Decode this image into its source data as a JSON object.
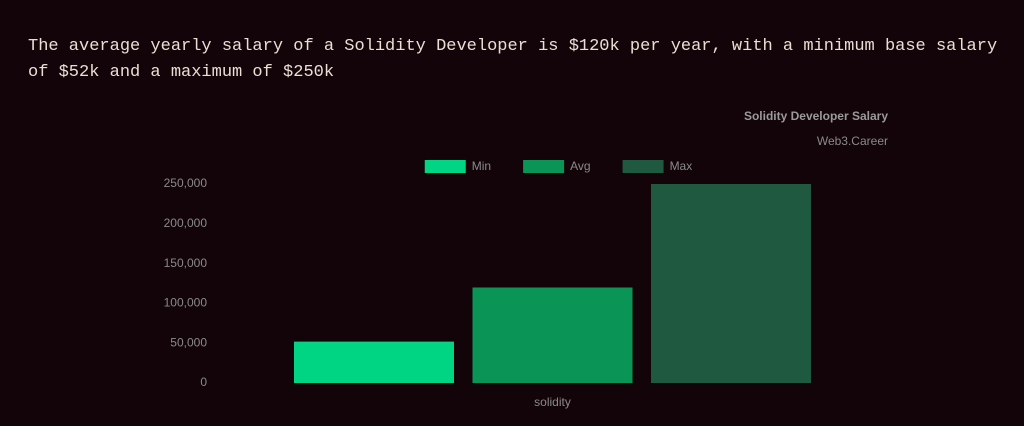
{
  "intro": "The average yearly salary of a Solidity Developer is $120k per year, with a minimum base salary of $52k and a maximum of $250k",
  "chart_data": {
    "type": "bar",
    "title": "Solidity Developer Salary",
    "subtitle": "Web3.Career",
    "categories": [
      "solidity"
    ],
    "series": [
      {
        "name": "Min",
        "color": "#00d584",
        "values": [
          52000
        ]
      },
      {
        "name": "Avg",
        "color": "#0a9455",
        "values": [
          120000
        ]
      },
      {
        "name": "Max",
        "color": "#1f5940",
        "values": [
          250000
        ]
      }
    ],
    "ylim": [
      0,
      250000
    ],
    "yticks": [
      0,
      {
        "value": 50000,
        "label": "50,000"
      },
      {
        "value": 100000,
        "label": "100,000"
      },
      {
        "value": 150000,
        "label": "150,000"
      },
      {
        "value": 200000,
        "label": "200,000"
      },
      {
        "value": 250000,
        "label": "250,000"
      }
    ],
    "grid": false,
    "legend": "top"
  }
}
